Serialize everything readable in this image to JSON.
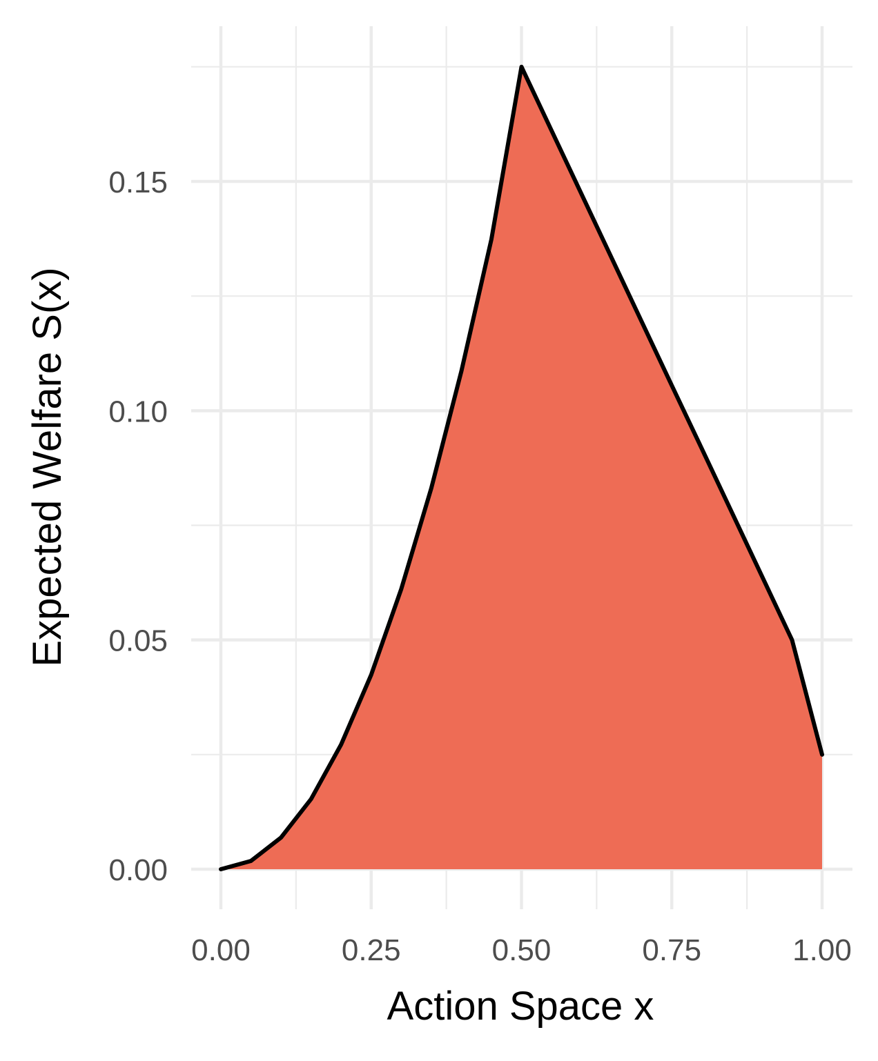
{
  "chart_data": {
    "type": "area",
    "title": "",
    "xlabel": "Action Space x",
    "ylabel": "Expected Welfare S(x)",
    "xlim": [
      0,
      1
    ],
    "ylim": [
      -0.0072,
      0.1675
    ],
    "grid": true,
    "legend": "none",
    "x_ticks": [
      0,
      0.25,
      0.5,
      0.75,
      1
    ],
    "x_tick_labels": [
      "0.00",
      "0.25",
      "0.50",
      "0.75",
      "1.00"
    ],
    "y_ticks": [
      0,
      0.05,
      0.1,
      0.15
    ],
    "y_tick_labels": [
      "0.00",
      "0.05",
      "0.10",
      "0.15"
    ],
    "series": [
      {
        "fill_color": "#EE6C55",
        "line_color": "#000000",
        "x": [
          0,
          0.05,
          0.1,
          0.15,
          0.2,
          0.25,
          0.3,
          0.35,
          0.4,
          0.45,
          0.5,
          0.55,
          0.6,
          0.65,
          0.7,
          0.75,
          0.8,
          0.85,
          0.9,
          0.95,
          1
        ],
        "values": [
          0,
          0.0018,
          0.0069,
          0.0153,
          0.0272,
          0.0424,
          0.0611,
          0.0831,
          0.1086,
          0.1374,
          0.175,
          0.1611,
          0.1472,
          0.1333,
          0.1194,
          0.1055,
          0.0917,
          0.0778,
          0.0639,
          0.05,
          0.025
        ]
      }
    ]
  }
}
